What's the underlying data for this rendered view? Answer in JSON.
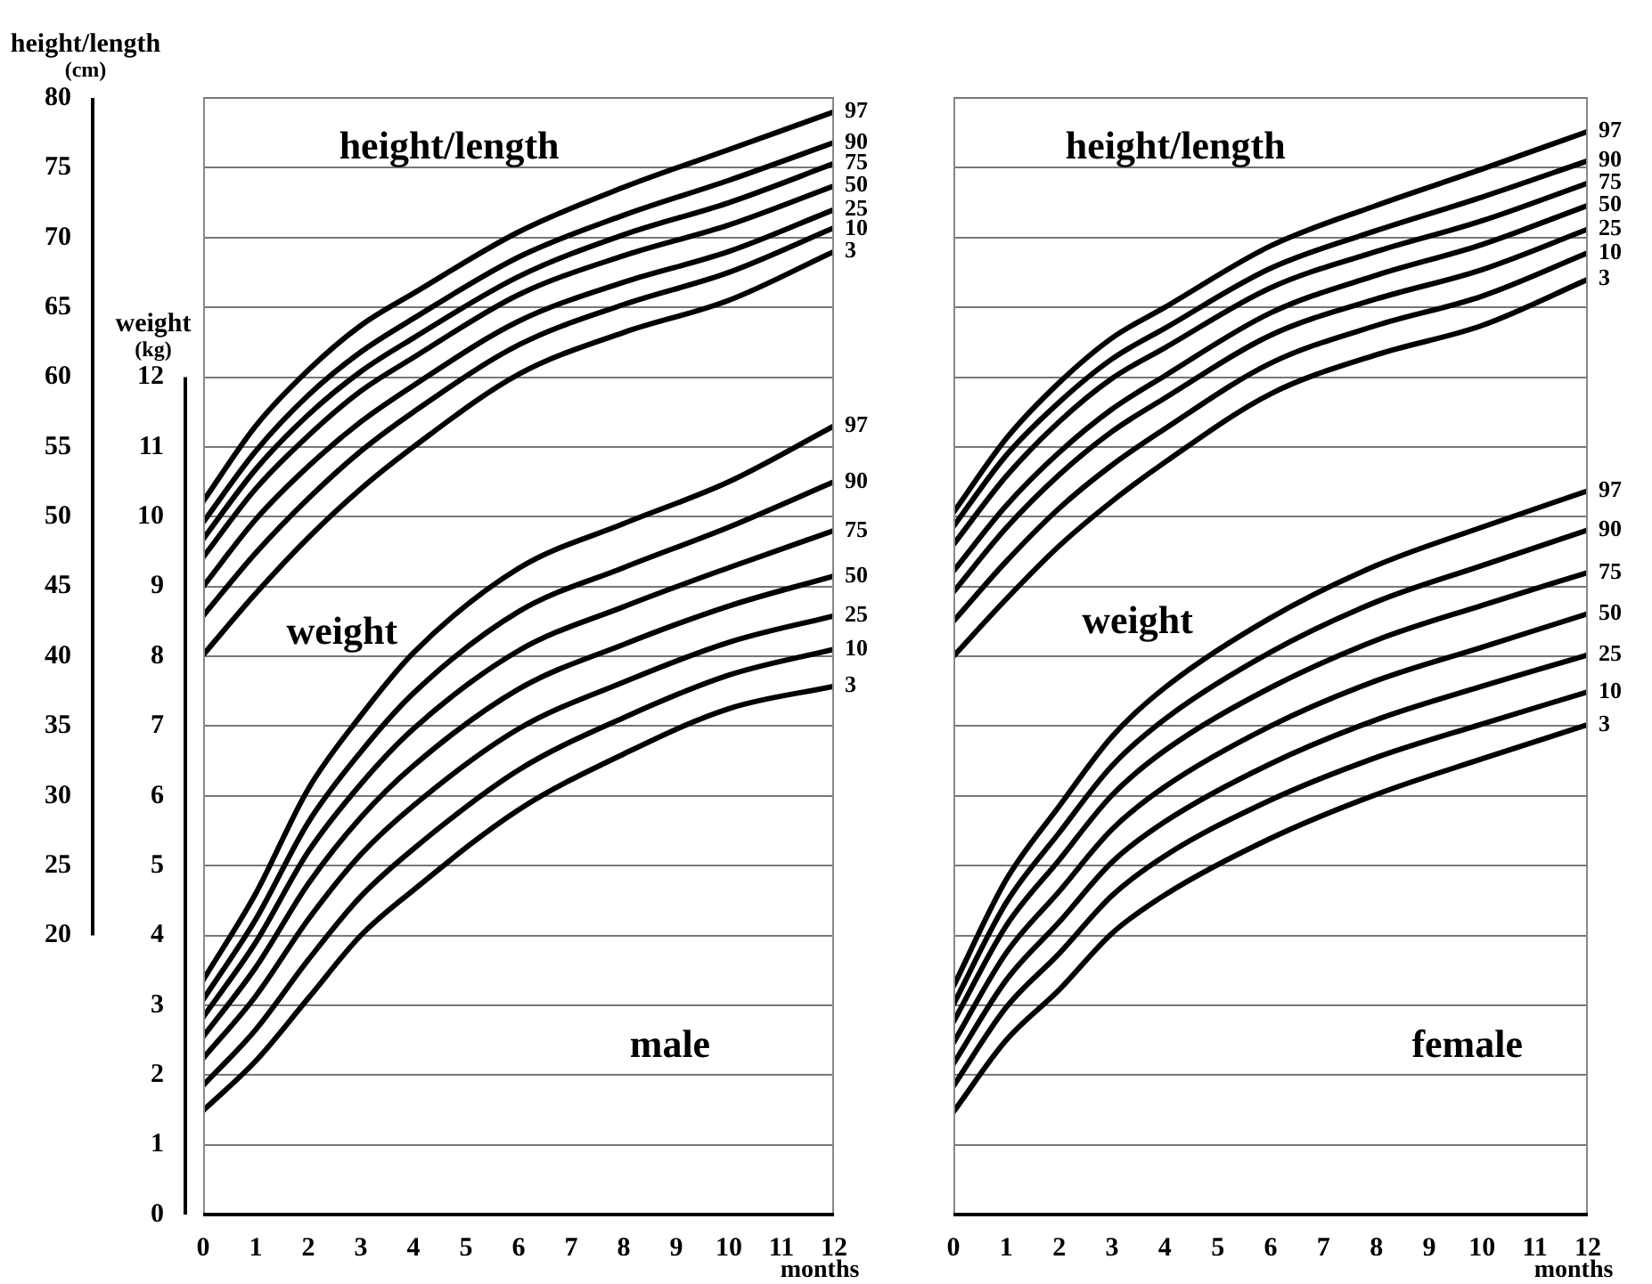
{
  "chart_data": [
    {
      "type": "line",
      "xlabel": "months",
      "ylabel": "weight (kg)",
      "y2label": "height/length (cm)",
      "x": [
        0,
        1,
        2,
        3,
        4,
        6,
        8,
        10,
        12
      ],
      "xlim": [
        0,
        12
      ],
      "xticks": [
        0,
        1,
        2,
        3,
        4,
        5,
        6,
        7,
        8,
        9,
        10,
        11,
        12
      ],
      "ylim": [
        0,
        16
      ],
      "yticks": [
        0,
        1,
        2,
        3,
        4,
        5,
        6,
        7,
        8,
        9,
        10,
        11,
        12
      ],
      "y2lim": [
        0,
        80
      ],
      "y2ticks": [
        20,
        25,
        30,
        35,
        40,
        45,
        50,
        55,
        60,
        65,
        70,
        75,
        80
      ],
      "grid": "y",
      "legend": false,
      "line_style": "solid",
      "annotations": [
        "height/length",
        "weight",
        "male"
      ],
      "series": [
        {
          "name": "97",
          "color": "#000000",
          "axis": "y2",
          "values": [
            51.1,
            56.5,
            60.5,
            63.7,
            66.0,
            70.4,
            73.6,
            76.3,
            79.0
          ]
        },
        {
          "name": "90",
          "color": "#000000",
          "axis": "y2",
          "values": [
            49.6,
            54.7,
            58.7,
            61.8,
            64.2,
            68.6,
            71.6,
            74.1,
            76.8
          ]
        },
        {
          "name": "75",
          "color": "#000000",
          "axis": "y2",
          "values": [
            48.4,
            53.4,
            57.3,
            60.4,
            62.8,
            67.2,
            70.2,
            72.5,
            75.3
          ]
        },
        {
          "name": "50",
          "color": "#000000",
          "axis": "y2",
          "values": [
            47.1,
            52.0,
            55.8,
            59.0,
            61.4,
            65.9,
            68.7,
            70.9,
            73.7
          ]
        },
        {
          "name": "25",
          "color": "#000000",
          "axis": "y2",
          "values": [
            45.0,
            49.8,
            53.6,
            56.8,
            59.4,
            64.0,
            66.8,
            69.0,
            72.0
          ]
        },
        {
          "name": "10",
          "color": "#000000",
          "axis": "y2",
          "values": [
            42.9,
            47.4,
            51.3,
            54.7,
            57.5,
            62.3,
            65.2,
            67.5,
            70.7
          ]
        },
        {
          "name": "3",
          "color": "#000000",
          "axis": "y2",
          "values": [
            40.1,
            44.5,
            48.5,
            52.0,
            55.0,
            60.2,
            63.2,
            65.5,
            69.0
          ]
        },
        {
          "name": "97",
          "color": "#000000",
          "values": [
            3.36,
            4.6,
            6.1,
            7.15,
            8.05,
            9.26,
            9.9,
            10.5,
            11.3
          ]
        },
        {
          "name": "90",
          "color": "#000000",
          "values": [
            3.08,
            4.23,
            5.62,
            6.63,
            7.47,
            8.64,
            9.27,
            9.85,
            10.5
          ]
        },
        {
          "name": "75",
          "color": "#000000",
          "values": [
            2.83,
            3.9,
            5.2,
            6.17,
            6.96,
            8.08,
            8.71,
            9.27,
            9.8
          ]
        },
        {
          "name": "50",
          "color": "#000000",
          "values": [
            2.55,
            3.54,
            4.74,
            5.69,
            6.43,
            7.53,
            8.17,
            8.72,
            9.15
          ]
        },
        {
          "name": "25",
          "color": "#000000",
          "values": [
            2.24,
            3.13,
            4.23,
            5.16,
            5.86,
            6.96,
            7.63,
            8.2,
            8.58
          ]
        },
        {
          "name": "10",
          "color": "#000000",
          "values": [
            1.85,
            2.65,
            3.65,
            4.56,
            5.24,
            6.37,
            7.12,
            7.73,
            8.1
          ]
        },
        {
          "name": "3",
          "color": "#000000",
          "values": [
            1.49,
            2.2,
            3.1,
            4.0,
            4.65,
            5.8,
            6.6,
            7.25,
            7.57
          ]
        }
      ]
    },
    {
      "type": "line",
      "xlabel": "months",
      "x": [
        0,
        1,
        2,
        3,
        4,
        6,
        8,
        10,
        12
      ],
      "xlim": [
        0,
        12
      ],
      "xticks": [
        0,
        1,
        2,
        3,
        4,
        5,
        6,
        7,
        8,
        9,
        10,
        11,
        12
      ],
      "ylim": [
        0,
        16
      ],
      "yticks": [
        0,
        1,
        2,
        3,
        4,
        5,
        6,
        7,
        8,
        9,
        10,
        11,
        12
      ],
      "y2lim": [
        0,
        80
      ],
      "y2ticks": [
        20,
        25,
        30,
        35,
        40,
        45,
        50,
        55,
        60,
        65,
        70,
        75,
        80
      ],
      "tick_labels": "x",
      "grid": "y",
      "legend": false,
      "line_style": "solid",
      "annotations": [
        "height/length",
        "weight",
        "female"
      ],
      "series": [
        {
          "name": "97",
          "color": "#000000",
          "axis": "y2",
          "values": [
            50.3,
            55.6,
            59.6,
            62.8,
            65.0,
            69.4,
            72.3,
            74.9,
            77.6
          ]
        },
        {
          "name": "90",
          "color": "#000000",
          "axis": "y2",
          "values": [
            49.3,
            54.4,
            58.2,
            61.3,
            63.5,
            67.8,
            70.5,
            72.9,
            75.5
          ]
        },
        {
          "name": "75",
          "color": "#000000",
          "axis": "y2",
          "values": [
            48.0,
            52.9,
            56.8,
            59.9,
            62.1,
            66.4,
            69.0,
            71.2,
            73.9
          ]
        },
        {
          "name": "50",
          "color": "#000000",
          "axis": "y2",
          "values": [
            46.1,
            50.8,
            54.6,
            57.7,
            60.1,
            64.6,
            67.3,
            69.5,
            72.3
          ]
        },
        {
          "name": "25",
          "color": "#000000",
          "axis": "y2",
          "values": [
            44.6,
            49.2,
            53.0,
            56.1,
            58.5,
            63.0,
            65.6,
            67.7,
            70.6
          ]
        },
        {
          "name": "10",
          "color": "#000000",
          "axis": "y2",
          "values": [
            42.5,
            46.8,
            50.6,
            53.7,
            56.3,
            61.0,
            63.7,
            65.8,
            68.9
          ]
        },
        {
          "name": "3",
          "color": "#000000",
          "axis": "y2",
          "values": [
            40.0,
            44.1,
            47.9,
            51.1,
            53.9,
            58.8,
            61.6,
            63.7,
            67.0
          ]
        },
        {
          "name": "97",
          "color": "#000000",
          "values": [
            3.27,
            4.8,
            5.85,
            6.85,
            7.55,
            8.55,
            9.3,
            9.85,
            10.37
          ]
        },
        {
          "name": "90",
          "color": "#000000",
          "values": [
            3.01,
            4.47,
            5.47,
            6.43,
            7.1,
            8.06,
            8.78,
            9.3,
            9.81
          ]
        },
        {
          "name": "75",
          "color": "#000000",
          "values": [
            2.76,
            4.14,
            5.08,
            6.01,
            6.65,
            7.55,
            8.23,
            8.73,
            9.2
          ]
        },
        {
          "name": "50",
          "color": "#000000",
          "values": [
            2.46,
            3.75,
            4.63,
            5.52,
            6.13,
            7.0,
            7.65,
            8.13,
            8.61
          ]
        },
        {
          "name": "25",
          "color": "#000000",
          "values": [
            2.16,
            3.36,
            4.19,
            5.05,
            5.63,
            6.46,
            7.09,
            7.57,
            8.02
          ]
        },
        {
          "name": "10",
          "color": "#000000",
          "values": [
            1.84,
            2.97,
            3.74,
            4.57,
            5.14,
            5.94,
            6.55,
            7.03,
            7.49
          ]
        },
        {
          "name": "3",
          "color": "#000000",
          "values": [
            1.47,
            2.5,
            3.22,
            4.03,
            4.58,
            5.39,
            6.02,
            6.53,
            7.02
          ]
        }
      ]
    }
  ]
}
